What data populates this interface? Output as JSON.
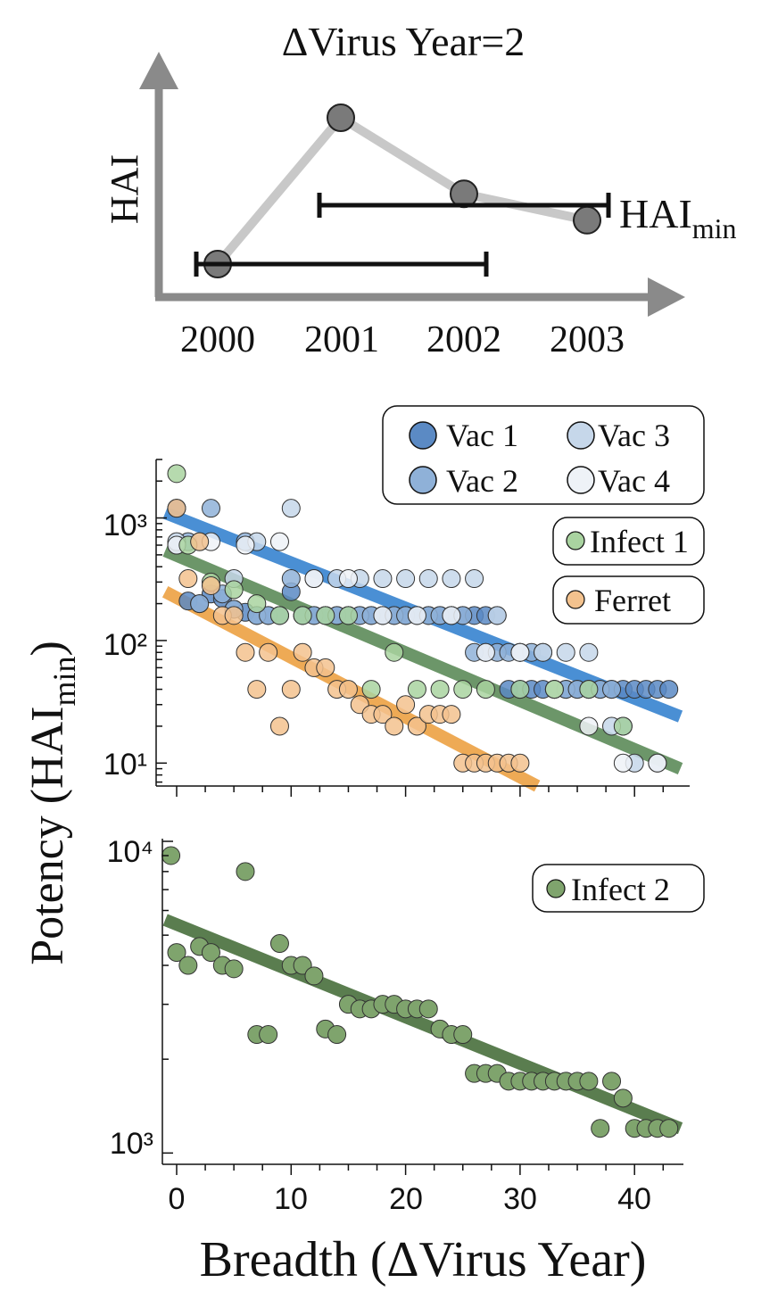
{
  "schematic": {
    "title": "ΔVirus Year=2",
    "ylabel": "HAI",
    "years": [
      "2000",
      "2001",
      "2002",
      "2003"
    ],
    "hai_values": [
      1,
      6,
      3.4,
      2.5
    ],
    "min_label_main": "HAI",
    "min_label_sub": "min",
    "colors": {
      "line": "#c8c8c8",
      "marker": "#7a7a7a",
      "axis": "#8a8a8a",
      "bar": "#000000"
    }
  },
  "shared": {
    "ylabel_main": "Potency (HAI",
    "ylabel_sub": "min",
    "ylabel_close": ")",
    "xlabel": "Breadth (ΔVirus Year)"
  },
  "chart_data": [
    {
      "type": "scatter",
      "title": "",
      "xlabel": "Breadth (ΔVirus Year)",
      "ylabel": "Potency (HAImin)",
      "yscale": "log",
      "ylim": [
        6.5,
        3000
      ],
      "xlim": [
        -1,
        44
      ],
      "yticks": [
        "10¹",
        "10²",
        "10³"
      ],
      "legend": [
        {
          "group": 1,
          "entries": [
            "Vac 1",
            "Vac 3",
            "Vac 2",
            "Vac 4"
          ]
        },
        {
          "group": 2,
          "entries": [
            "Infect 1"
          ]
        },
        {
          "group": 3,
          "entries": [
            "Ferret"
          ]
        }
      ],
      "series": [
        {
          "name": "Vac 1",
          "color": "#5b8ac4",
          "x": [
            0,
            1,
            2,
            3,
            4,
            5,
            6,
            7,
            8,
            9,
            10,
            11,
            12,
            13,
            14,
            15,
            16,
            17,
            18,
            19,
            20,
            21,
            22,
            23,
            24,
            25,
            26,
            27,
            28,
            29,
            30,
            31,
            32,
            33,
            34,
            35,
            36,
            37,
            38,
            39,
            40,
            41,
            42,
            43
          ],
          "y": [
            1200,
            210,
            200,
            240,
            220,
            180,
            170,
            160,
            160,
            160,
            250,
            160,
            160,
            160,
            160,
            160,
            160,
            160,
            160,
            160,
            160,
            160,
            160,
            160,
            160,
            160,
            160,
            160,
            160,
            40,
            40,
            40,
            40,
            40,
            40,
            40,
            40,
            40,
            40,
            40,
            40,
            40,
            40,
            40
          ]
        },
        {
          "name": "Vac 2",
          "color": "#8fb1d8",
          "x": [
            0,
            1,
            2,
            3,
            4,
            5,
            6,
            7,
            8,
            9,
            10,
            11,
            12,
            13,
            14,
            15,
            16,
            17,
            18,
            19,
            20,
            21,
            22,
            23,
            24,
            25,
            26,
            27,
            28,
            29,
            30,
            31,
            32,
            33,
            34,
            35,
            36,
            37,
            38,
            39
          ],
          "y": [
            600,
            640,
            200,
            1200,
            240,
            180,
            640,
            160,
            160,
            160,
            320,
            160,
            160,
            160,
            160,
            160,
            160,
            160,
            160,
            160,
            160,
            160,
            160,
            160,
            160,
            160,
            80,
            80,
            80,
            80,
            80,
            80,
            80,
            40,
            40,
            40,
            40,
            40,
            40,
            20
          ]
        },
        {
          "name": "Vac 3",
          "color": "#c6d7ea",
          "x": [
            0,
            2,
            5,
            7,
            10,
            12,
            14,
            16,
            18,
            20,
            22,
            24,
            26,
            28,
            30,
            32,
            34,
            36,
            38,
            40,
            42
          ],
          "y": [
            640,
            640,
            320,
            640,
            1200,
            320,
            320,
            320,
            320,
            320,
            320,
            320,
            320,
            160,
            80,
            80,
            80,
            80,
            20,
            10,
            10
          ]
        },
        {
          "name": "Vac 4",
          "color": "#eef2f7",
          "x": [
            0,
            3,
            6,
            9,
            12,
            15,
            18,
            21,
            24,
            27,
            30,
            33,
            36,
            39,
            42
          ],
          "y": [
            600,
            640,
            600,
            640,
            320,
            320,
            160,
            160,
            160,
            80,
            80,
            40,
            20,
            10,
            10
          ]
        },
        {
          "name": "Infect 1",
          "color": "#a9d3a0",
          "x": [
            0,
            1,
            3,
            5,
            7,
            9,
            11,
            13,
            15,
            17,
            19,
            21,
            23,
            25,
            27,
            30,
            33,
            36,
            39
          ],
          "y": [
            2300,
            600,
            300,
            260,
            200,
            160,
            160,
            160,
            160,
            40,
            80,
            40,
            40,
            40,
            40,
            40,
            40,
            40,
            20
          ]
        },
        {
          "name": "Ferret",
          "color": "#f3c28e",
          "x": [
            0,
            1,
            2,
            3,
            4,
            5,
            6,
            7,
            8,
            9,
            10,
            11,
            12,
            13,
            14,
            15,
            16,
            17,
            18,
            19,
            20,
            21,
            22,
            23,
            24,
            25,
            26,
            27,
            28,
            29,
            30
          ],
          "y": [
            1200,
            320,
            640,
            280,
            160,
            160,
            80,
            40,
            80,
            20,
            40,
            80,
            60,
            60,
            40,
            40,
            30,
            25,
            25,
            20,
            30,
            20,
            25,
            25,
            25,
            10,
            10,
            10,
            10,
            10,
            10
          ]
        }
      ],
      "fits": [
        {
          "name": "Vac fit",
          "color": "#4a8fd4",
          "x": [
            -1,
            44
          ],
          "y": [
            1100,
            24
          ]
        },
        {
          "name": "Infect 1 fit",
          "color": "#6c9669",
          "x": [
            -1,
            44
          ],
          "y": [
            540,
            9
          ]
        },
        {
          "name": "Ferret fit",
          "color": "#eeaa55",
          "x": [
            -1,
            31.5
          ],
          "y": [
            250,
            6.5
          ]
        }
      ]
    },
    {
      "type": "scatter",
      "title": "",
      "xlabel": "Breadth (ΔVirus Year)",
      "ylabel": "Potency (HAImin)",
      "yscale": "log",
      "ylim": [
        920,
        10200
      ],
      "xlim": [
        -1,
        44
      ],
      "yticks": [
        "10³",
        "10⁴"
      ],
      "xticks": [
        "0",
        "10",
        "20",
        "30",
        "40"
      ],
      "legend": [
        {
          "group": 1,
          "entries": [
            "Infect 2"
          ]
        }
      ],
      "series": [
        {
          "name": "Infect 2",
          "color": "#7fa46d",
          "x": [
            -0.5,
            0,
            1,
            2,
            3,
            4,
            5,
            6,
            7,
            8,
            9,
            10,
            11,
            12,
            13,
            14,
            15,
            16,
            17,
            18,
            19,
            20,
            21,
            22,
            23,
            24,
            25,
            26,
            27,
            28,
            29,
            30,
            31,
            32,
            33,
            34,
            35,
            36,
            37,
            38,
            39,
            40,
            41,
            42,
            43
          ],
          "y": [
            9000,
            4400,
            4000,
            4600,
            4400,
            4000,
            3900,
            8000,
            2400,
            2400,
            4700,
            4000,
            4000,
            3700,
            2500,
            2400,
            3000,
            2900,
            2900,
            3000,
            3000,
            2900,
            2900,
            2900,
            2500,
            2400,
            2400,
            1800,
            1800,
            1800,
            1700,
            1700,
            1700,
            1700,
            1700,
            1700,
            1700,
            1700,
            1200,
            1700,
            1500,
            1200,
            1200,
            1200,
            1200
          ]
        }
      ],
      "fits": [
        {
          "name": "Infect 2 fit",
          "color": "#5a7d4f",
          "x": [
            -1,
            44
          ],
          "y": [
            5600,
            1200
          ]
        }
      ]
    }
  ]
}
